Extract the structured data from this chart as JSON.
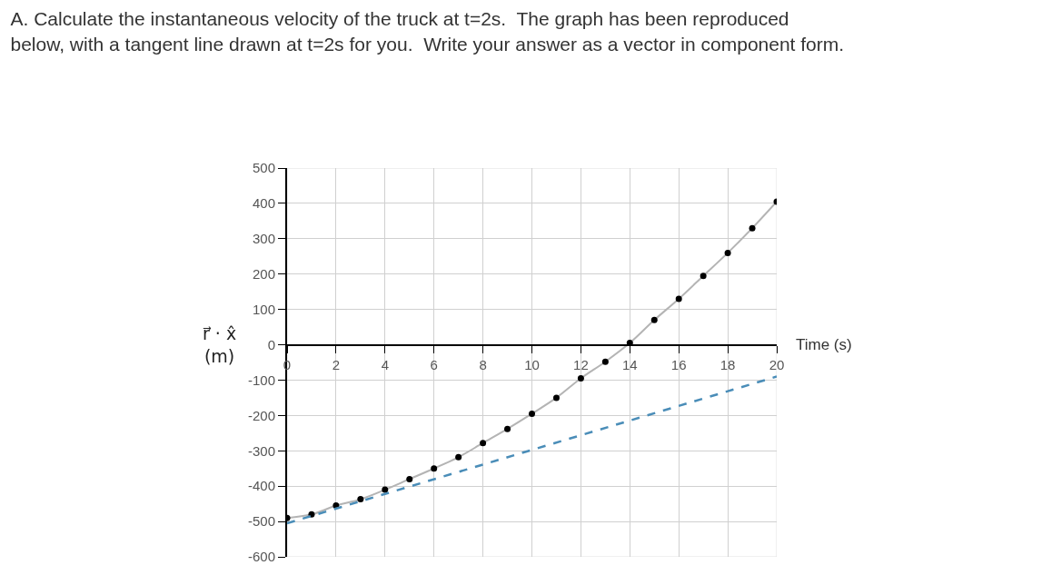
{
  "chart_data": {
    "type": "scatter",
    "title": "A. Calculate the instantaneous velocity of the truck at t=2s.  The graph has been reproduced\nbelow, with a tangent line drawn at t=2s for you.  Write your answer as a vector in component form.",
    "xlabel": "Time (s)",
    "ylabel": "r⃗ · x̂\n(m)",
    "x": [
      0,
      1,
      2,
      3,
      4,
      5,
      6,
      7,
      8,
      9,
      10,
      11,
      12,
      13,
      14,
      15,
      16,
      17,
      18,
      19,
      20
    ],
    "series": [
      {
        "type": "line",
        "color": "#b4b4b4",
        "marker": "none",
        "values": [
          -490,
          -480,
          -455,
          -437,
          -410,
          -380,
          -350,
          -318,
          -278,
          -238,
          -195,
          -150,
          -95,
          -48,
          5,
          70,
          130,
          195,
          260,
          330,
          405
        ]
      },
      {
        "color": "#000000",
        "marker": "circle",
        "values": [
          -490,
          -480,
          -455,
          -437,
          -410,
          -380,
          -350,
          -318,
          -278,
          -238,
          -195,
          -150,
          -95,
          -48,
          5,
          70,
          130,
          195,
          260,
          330,
          405
        ]
      },
      {
        "type": "line",
        "color": "#4a8db8",
        "line_style": "dashed",
        "marker": "none",
        "x": [
          0,
          20
        ],
        "values": [
          -505,
          -90
        ]
      }
    ],
    "xlim": [
      0,
      20
    ],
    "xticks": [
      0,
      2,
      4,
      6,
      8,
      10,
      12,
      14,
      16,
      18,
      20
    ],
    "ylim": [
      -600,
      500
    ],
    "yticks": [
      -600,
      -500,
      -400,
      -300,
      -200,
      -100,
      0,
      100,
      200,
      300,
      400,
      500
    ],
    "grid": true
  }
}
